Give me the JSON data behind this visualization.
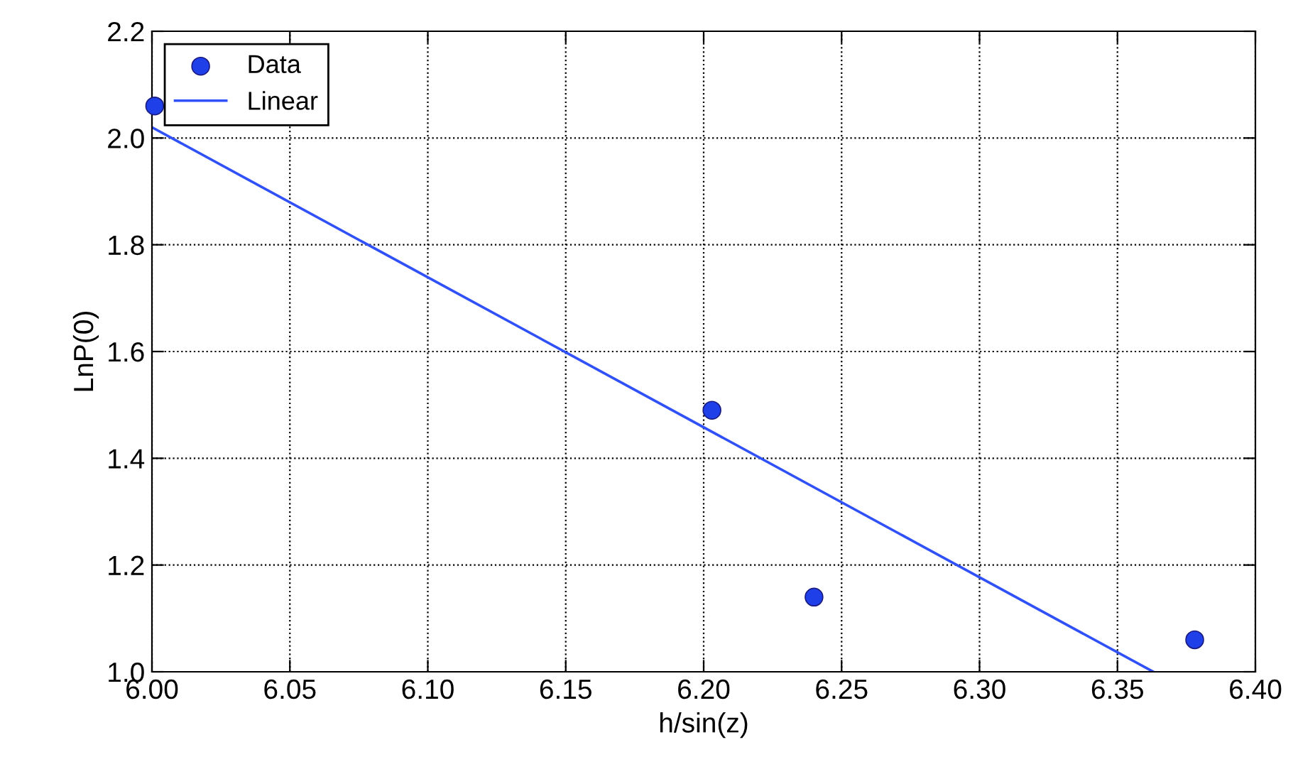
{
  "chart_data": {
    "type": "scatter",
    "xlabel": "h/sin(z)",
    "ylabel": "LnP(0)",
    "series": [
      {
        "name": "Data",
        "color": "#1f3fe8",
        "marker": "circle",
        "x": [
          6.001,
          6.203,
          6.24,
          6.378
        ],
        "values": [
          2.06,
          1.49,
          1.14,
          1.06
        ]
      },
      {
        "name": "Linear",
        "type": "line",
        "color": "#3050f8",
        "marker": "none",
        "line_style": "solid",
        "x": [
          6.0,
          6.363
        ],
        "values": [
          2.02,
          1.0
        ]
      }
    ],
    "xlim": [
      6.0,
      6.4
    ],
    "xticks": [
      {
        "value": 6.0,
        "label": "6.00"
      },
      6.05,
      {
        "value": 6.1,
        "label": "6.10"
      },
      6.15,
      {
        "value": 6.2,
        "label": "6.20"
      },
      6.25,
      {
        "value": 6.3,
        "label": "6.30"
      },
      6.35,
      {
        "value": 6.4,
        "label": "6.40"
      }
    ],
    "ylim": [
      1.0,
      2.2
    ],
    "yticks": [
      {
        "value": 1.0,
        "label": "1.0"
      },
      1.2,
      1.4,
      1.6,
      1.8,
      {
        "value": 2.0,
        "label": "2.0"
      },
      2.2
    ],
    "grid": true,
    "legend": "top left"
  }
}
